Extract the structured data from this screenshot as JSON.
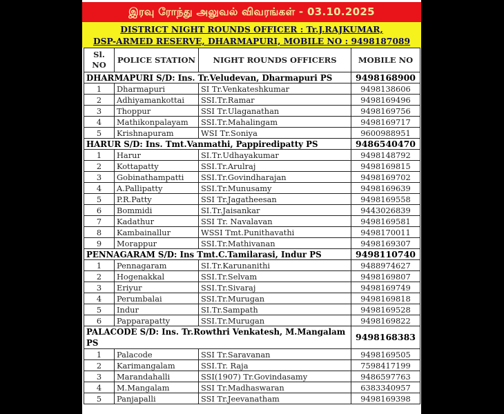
{
  "header": {
    "title_tamil": "இரவு ரோந்து அலுவல் விவரங்கள் - 03.10.2025",
    "district_line1": "DISTRICT  NIGHT ROUNDS OFFICER : Tr.J.RAJKUMAR,",
    "district_line2": "DSP-ARMED RESERVE, DHARMAPURI, MOBILE NO : 9498187089"
  },
  "colors": {
    "header_red": "#e8141a",
    "banner_yellow": "#f6f21d"
  },
  "table": {
    "columns": [
      "Sl. NO",
      "POLICE STATION",
      "NIGHT ROUNDS  OFFICERS",
      "MOBILE NO"
    ],
    "sections": [
      {
        "title": "DHARMAPURI S/D: Ins. Tr.Veludevan, Dharmapuri PS",
        "mobile": "9498168900",
        "rows": [
          [
            "1",
            "Dharmapuri",
            "SI Tr.Venkateshkumar",
            "9498138606"
          ],
          [
            "2",
            "Adhiyamankottai",
            "SSI.Tr.Ramar",
            "9498169496"
          ],
          [
            "3",
            "Thoppur",
            "SSI Tr.Ulaganathan",
            "9498169756"
          ],
          [
            "4",
            "Mathikonpalayam",
            "SSI.Tr.Mahalingam",
            "9498169717"
          ],
          [
            "5",
            "Krishnapuram",
            "WSI Tr.Soniya",
            "9600988951"
          ]
        ]
      },
      {
        "title": "HARUR S/D: Ins. Tmt.Vanmathi,  Pappiredipatty  PS",
        "mobile": "9486540470",
        "rows": [
          [
            "1",
            "Harur",
            "SI.Tr.Udhayakumar",
            "9498148792"
          ],
          [
            "2",
            "Kottapatty",
            "SSI.Tr.Arulraj",
            "9498169815"
          ],
          [
            "3",
            "Gobinathampatti",
            "SSI.Tr.Govindharajan",
            "9498169702"
          ],
          [
            "4",
            "A.Pallipatty",
            "SSI.Tr.Munusamy",
            "9498169639"
          ],
          [
            "5",
            "P.R.Patty",
            "SSI Tr.Jagatheesan",
            "9498169558"
          ],
          [
            "6",
            "Bommidi",
            "SI.Tr.Jaisankar",
            "9443026839"
          ],
          [
            "7",
            "Kadathur",
            "SSI Tr. Navalavan",
            "9498169581"
          ],
          [
            "8",
            "Kambainallur",
            "WSSI Tmt.Punithavathi",
            "9498170011"
          ],
          [
            "9",
            "Morappur",
            "SSI.Tr.Mathivanan",
            "9498169307"
          ]
        ]
      },
      {
        "title": "PENNAGARAM S/D: Ins  Tmt.C.Tamilarasi, Indur PS",
        "mobile": "9498110740",
        "rows": [
          [
            "1",
            "Pennagaram",
            "SI.Tr.Karunanithi",
            "9488974627"
          ],
          [
            "2",
            "Hogenakkal",
            "SSI.Tr.Selvam",
            "9498169807"
          ],
          [
            "3",
            "Eriyur",
            "SSI.Tr.Sivaraj",
            "9498169749"
          ],
          [
            "4",
            "Perumbalai",
            "SSI.Tr.Murugan",
            "9498169818"
          ],
          [
            "5",
            "Indur",
            "SI.Tr.Sampath",
            "9498169528"
          ],
          [
            "6",
            "Papparapatty",
            "SSI.Tr.Murugan",
            "9498169822"
          ]
        ]
      },
      {
        "title": "PALACODE S/D: Ins. Tr.Rowthri Venkatesh, M.Mangalam PS",
        "mobile": "9498168383",
        "rows": [
          [
            "1",
            "Palacode",
            "SSI Tr.Saravanan",
            "9498169505"
          ],
          [
            "2",
            "Karimangalam",
            "SSI.Tr. Raja",
            "7598417199"
          ],
          [
            "3",
            "Marandahalli",
            "SSI(1907) Tr.Govindasamy",
            "9486597763"
          ],
          [
            "4",
            "M.Mangalam",
            "SSI Tr.Madhaswaran",
            "6383340957"
          ],
          [
            "5",
            "Panjapalli",
            "SSI Tr.Jeevanatham",
            "9498169398"
          ]
        ]
      }
    ]
  }
}
